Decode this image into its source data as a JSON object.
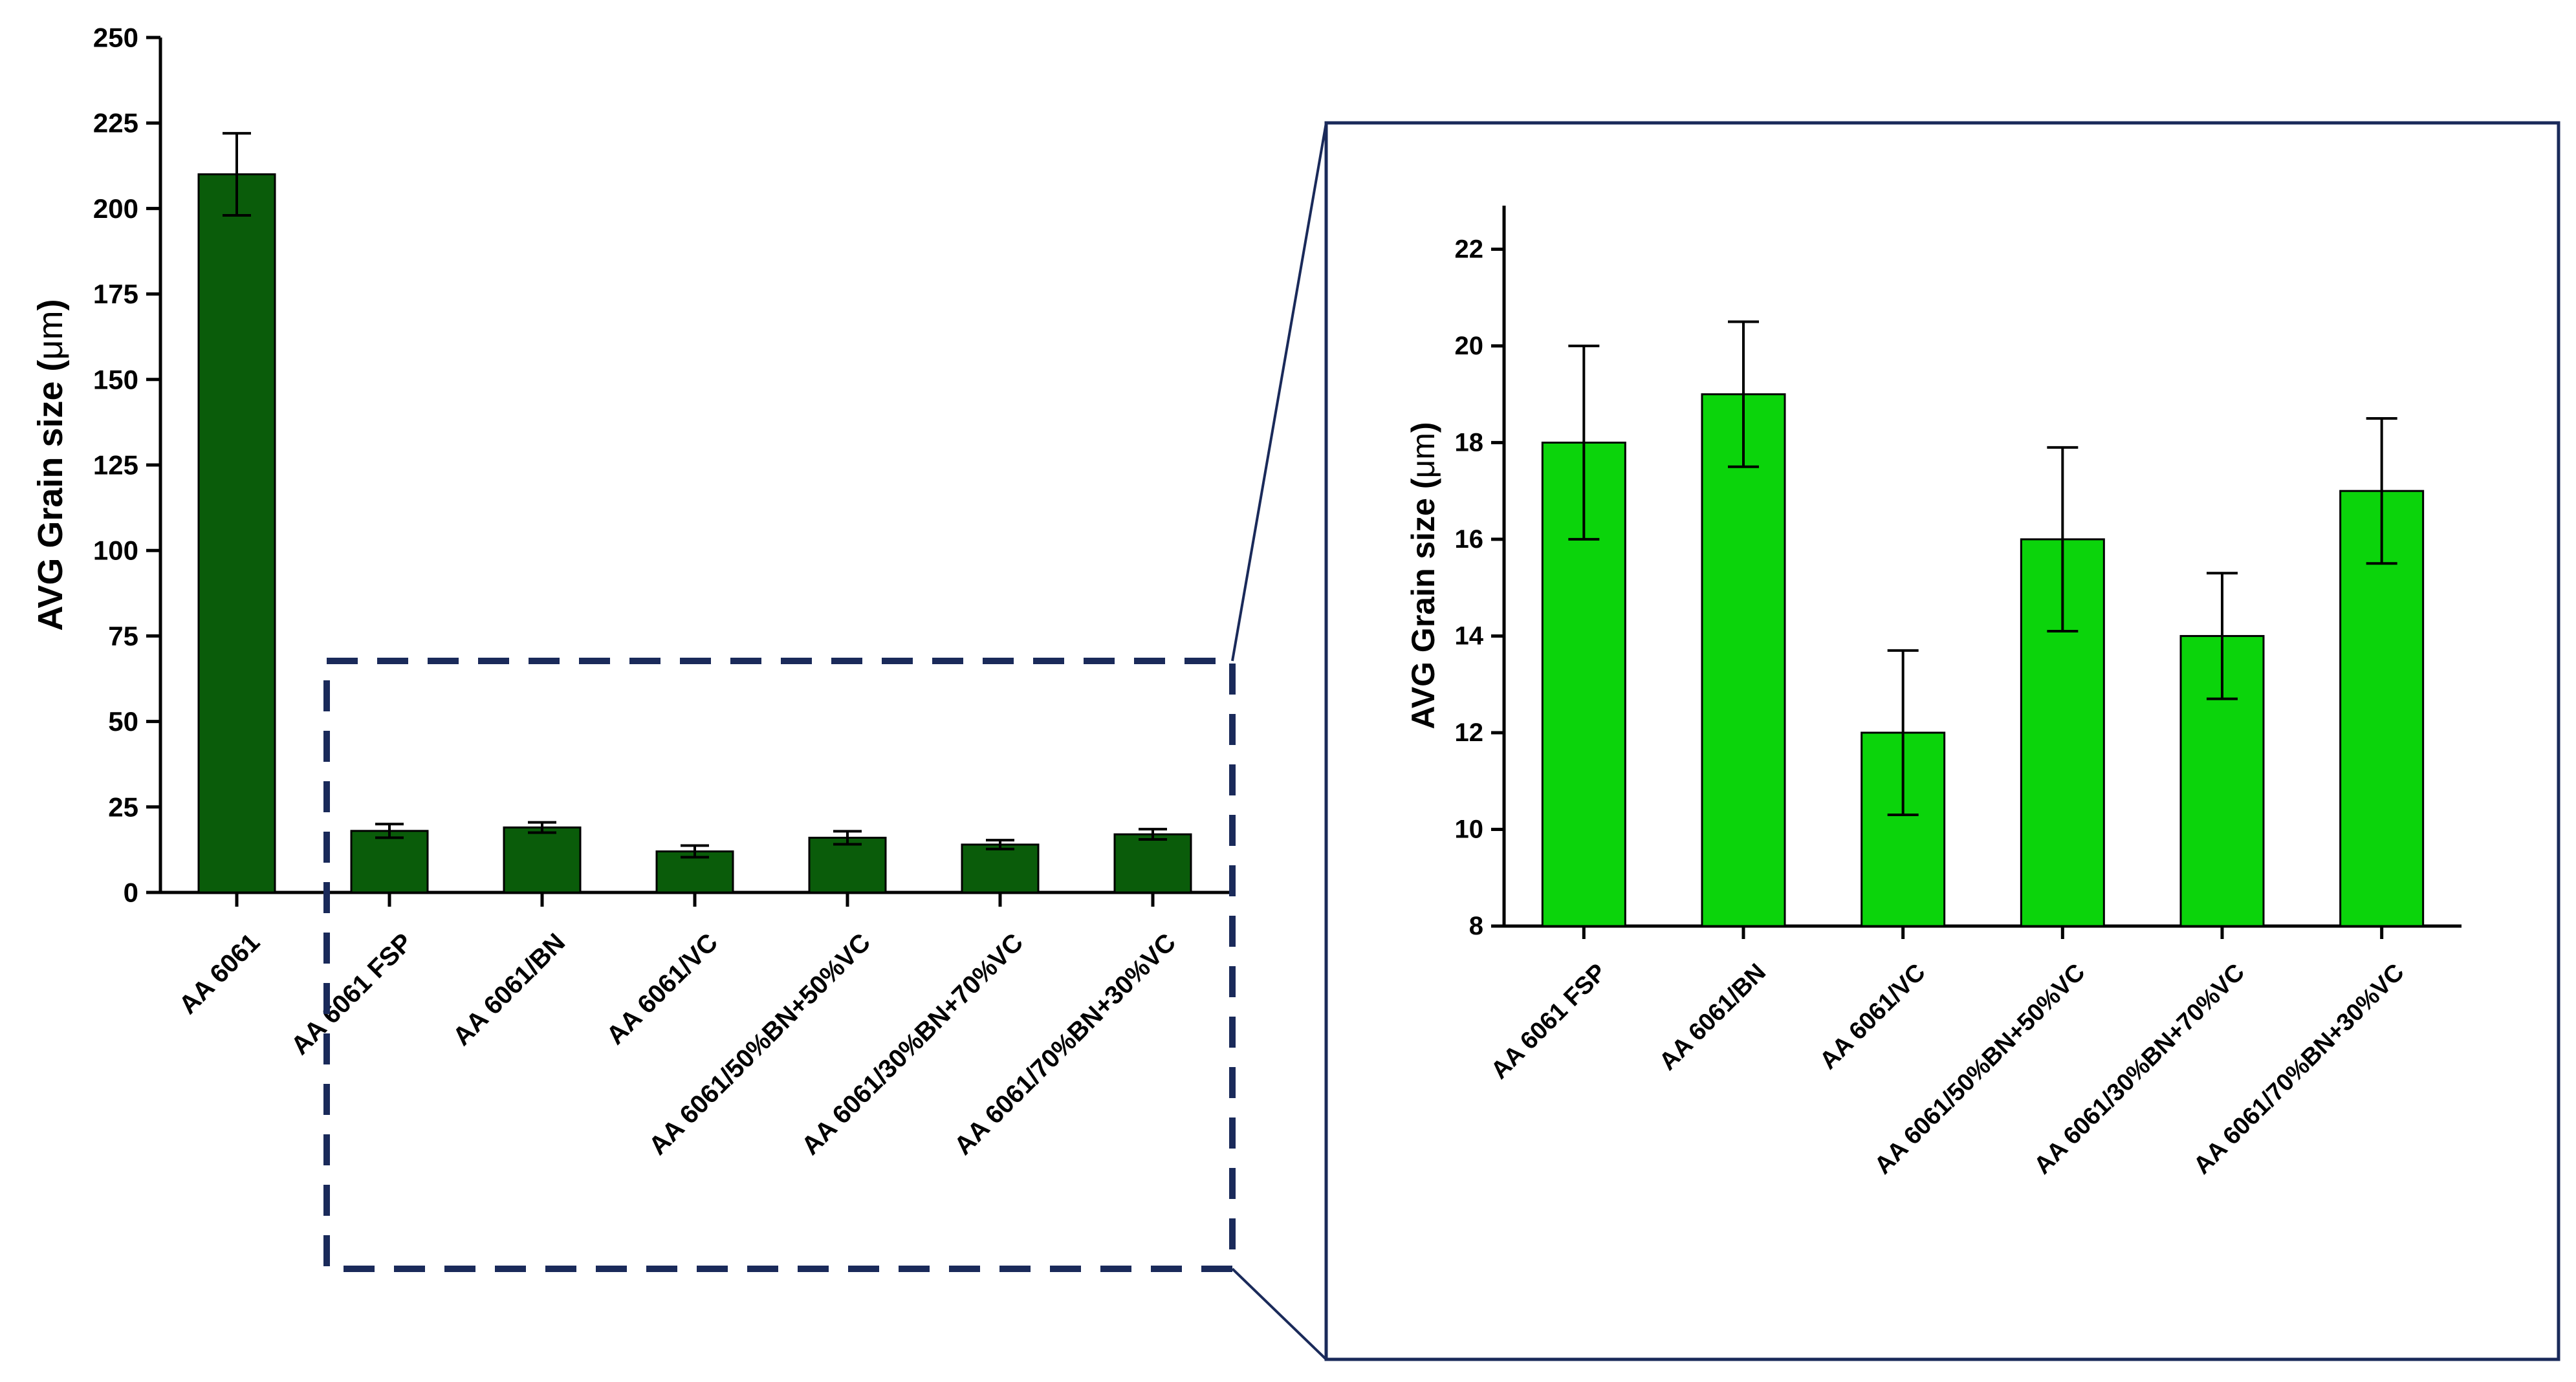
{
  "colors": {
    "main_bar": "#0a5c0a",
    "inset_bar": "#0bd40b",
    "bar_edge": "#000000",
    "zoom_box": "#1a2a5a",
    "inset_frame": "#1a2a5a",
    "axis": "#000000"
  },
  "chart_data": [
    {
      "type": "bar",
      "ylabel_prefix": "AVG Grain size (",
      "ylabel_unit": "μm",
      "ylabel_suffix": ")",
      "categories": [
        "AA 6061",
        "AA 6061 FSP",
        "AA 6061/BN",
        "AA 6061/VC",
        "AA 6061/50%BN+50%VC",
        "AA 6061/30%BN+70%VC",
        "AA 6061/70%BN+30%VC"
      ],
      "values": [
        210,
        18,
        19,
        12,
        16,
        14,
        17
      ],
      "errors": [
        12,
        2,
        1.5,
        1.7,
        1.9,
        1.3,
        1.5
      ],
      "ylim": [
        0,
        250
      ],
      "yticks": [
        0,
        25,
        50,
        75,
        100,
        125,
        150,
        175,
        200,
        225,
        250
      ],
      "grid": false,
      "legend": "none"
    },
    {
      "type": "bar",
      "ylabel_prefix": "AVG Grain size (",
      "ylabel_unit": "μm",
      "ylabel_suffix": ")",
      "categories": [
        "AA 6061 FSP",
        "AA 6061/BN",
        "AA 6061/VC",
        "AA 6061/50%BN+50%VC",
        "AA 6061/30%BN+70%VC",
        "AA 6061/70%BN+30%VC"
      ],
      "values": [
        18,
        19,
        12,
        16,
        14,
        17
      ],
      "errors": [
        2,
        1.5,
        1.7,
        1.9,
        1.3,
        1.5
      ],
      "ylim": [
        8,
        22.5
      ],
      "yticks": [
        8,
        10,
        12,
        14,
        16,
        18,
        20,
        22
      ],
      "grid": false,
      "legend": "none"
    }
  ]
}
